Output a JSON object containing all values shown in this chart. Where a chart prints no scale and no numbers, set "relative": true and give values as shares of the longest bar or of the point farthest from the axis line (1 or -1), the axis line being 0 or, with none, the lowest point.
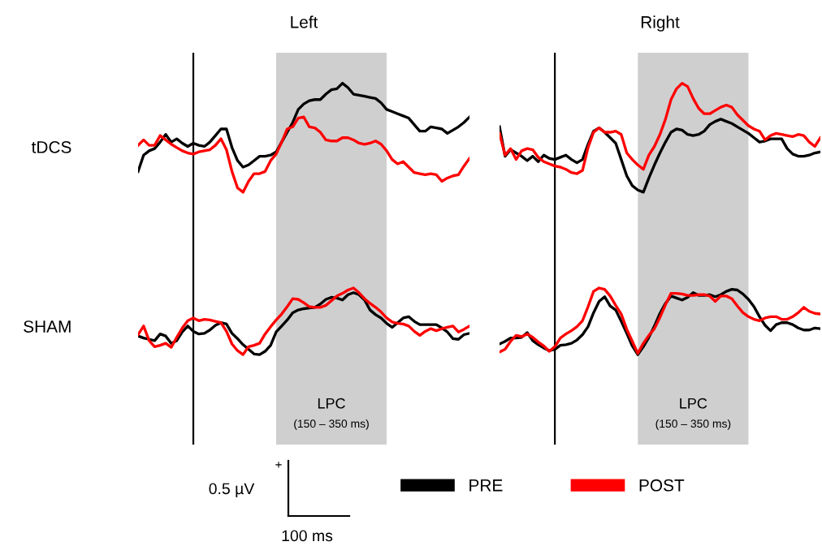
{
  "chart_data": [
    {
      "type": "line",
      "title": "Left",
      "ylabel": "tDCS",
      "relative": true,
      "tick_labels": false,
      "legend": "bottom",
      "line_style": "solid",
      "categories": [
        null,
        null,
        null,
        null,
        null,
        null,
        null,
        null,
        null,
        null,
        null,
        null,
        null,
        null,
        null,
        null,
        null,
        null,
        null,
        null,
        null,
        null,
        null,
        null,
        null,
        null,
        null,
        null,
        null,
        null,
        null,
        null,
        null,
        null,
        null,
        null,
        null,
        null,
        null,
        null,
        null,
        null,
        null,
        null,
        null,
        null,
        null,
        null,
        null,
        null,
        null,
        null,
        null,
        null,
        null,
        null,
        null,
        null,
        null,
        null,
        null
      ],
      "series": [
        {
          "name": "PRE",
          "color": "#000000",
          "values": [
            0.19,
            0.34,
            0.38,
            0.4,
            0.46,
            0.53,
            0.46,
            0.49,
            0.45,
            0.42,
            0.45,
            0.43,
            0.42,
            0.46,
            0.52,
            0.58,
            0.58,
            0.41,
            0.29,
            0.23,
            0.25,
            0.29,
            0.33,
            0.33,
            0.34,
            0.37,
            0.46,
            0.55,
            0.64,
            0.76,
            0.81,
            0.84,
            0.85,
            0.85,
            0.9,
            0.94,
            0.95,
            1,
            0.96,
            0.9,
            0.89,
            0.88,
            0.87,
            0.86,
            0.82,
            0.76,
            0.74,
            0.72,
            0.7,
            0.68,
            0.62,
            0.56,
            0.56,
            0.6,
            0.59,
            0.58,
            0.54,
            0.57,
            0.6,
            0.64,
            0.69
          ]
        },
        {
          "name": "POST",
          "color": "#ff0000",
          "values": [
            0.43,
            0.48,
            0.43,
            0.43,
            0.52,
            0.48,
            0.44,
            0.41,
            0.38,
            0.36,
            0.35,
            0.37,
            0.38,
            0.39,
            0.43,
            0.49,
            0.39,
            0.19,
            0.04,
            0,
            0.1,
            0.17,
            0.17,
            0.19,
            0.29,
            0.35,
            0.46,
            0.58,
            0.6,
            0.68,
            0.69,
            0.6,
            0.59,
            0.55,
            0.48,
            0.47,
            0.47,
            0.5,
            0.5,
            0.48,
            0.45,
            0.44,
            0.45,
            0.47,
            0.44,
            0.38,
            0.3,
            0.26,
            0.28,
            0.23,
            0.18,
            0.17,
            0.16,
            0.17,
            0.16,
            0.1,
            0.13,
            0.15,
            0.16,
            0.24,
            0.31
          ]
        }
      ]
    },
    {
      "type": "line",
      "title": "Right",
      "relative": true,
      "tick_labels": false,
      "line_style": "solid",
      "categories": [
        null,
        null,
        null,
        null,
        null,
        null,
        null,
        null,
        null,
        null,
        null,
        null,
        null,
        null,
        null,
        null,
        null,
        null,
        null,
        null,
        null,
        null,
        null,
        null,
        null,
        null,
        null,
        null,
        null,
        null,
        null,
        null,
        null,
        null,
        null,
        null,
        null,
        null,
        null,
        null,
        null,
        null,
        null,
        null,
        null,
        null,
        null,
        null,
        null,
        null,
        null,
        null,
        null,
        null,
        null,
        null,
        null,
        null,
        null
      ],
      "series": [
        {
          "color": "#000000",
          "values": [
            0.6,
            0.33,
            0.39,
            0.36,
            0.33,
            0.29,
            0.33,
            0.28,
            0.34,
            0.31,
            0.3,
            0.32,
            0.34,
            0.3,
            0.27,
            0.3,
            0.44,
            0.56,
            0.59,
            0.55,
            0.5,
            0.45,
            0.3,
            0.15,
            0.06,
            0.02,
            0,
            0.13,
            0.25,
            0.36,
            0.46,
            0.55,
            0.58,
            0.57,
            0.53,
            0.52,
            0.53,
            0.56,
            0.62,
            0.65,
            0.67,
            0.65,
            0.63,
            0.6,
            0.57,
            0.54,
            0.5,
            0.46,
            0.47,
            0.49,
            0.49,
            0.49,
            0.4,
            0.35,
            0.33,
            0.33,
            0.34,
            0.36,
            0.37
          ]
        },
        {
          "color": "#ff0000",
          "values": [
            0.54,
            0.34,
            0.4,
            0.3,
            0.38,
            0.4,
            0.39,
            0.32,
            0.28,
            0.26,
            0.24,
            0.23,
            0.21,
            0.18,
            0.17,
            0.2,
            0.41,
            0.55,
            0.59,
            0.55,
            0.55,
            0.56,
            0.53,
            0.36,
            0.3,
            0.25,
            0.21,
            0.34,
            0.42,
            0.53,
            0.67,
            0.85,
            0.95,
            1,
            0.97,
            0.86,
            0.77,
            0.72,
            0.72,
            0.75,
            0.78,
            0.8,
            0.78,
            0.71,
            0.66,
            0.61,
            0.58,
            0.56,
            0.48,
            0.52,
            0.54,
            0.53,
            0.52,
            0.51,
            0.53,
            0.52,
            0.46,
            0.42,
            0.5
          ]
        }
      ]
    },
    {
      "type": "line",
      "ylabel": "SHAM",
      "relative": true,
      "tick_labels": false,
      "line_style": "solid",
      "categories": [
        null,
        null,
        null,
        null,
        null,
        null,
        null,
        null,
        null,
        null,
        null,
        null,
        null,
        null,
        null,
        null,
        null,
        null,
        null,
        null,
        null,
        null,
        null,
        null,
        null,
        null,
        null,
        null,
        null,
        null,
        null,
        null,
        null,
        null,
        null,
        null,
        null,
        null,
        null,
        null,
        null,
        null,
        null,
        null,
        null,
        null,
        null,
        null,
        null,
        null,
        null,
        null,
        null,
        null,
        null,
        null,
        null,
        null,
        null,
        null,
        null
      ],
      "annotations": [
        "LPC\n(150 – 350 ms)",
        "+",
        "0.5 µV",
        "100 ms"
      ],
      "series": [
        {
          "color": "#000000",
          "values": [
            0.28,
            0.25,
            0.23,
            0.21,
            0.31,
            0.28,
            0.17,
            0.21,
            0.34,
            0.43,
            0.35,
            0.31,
            0.32,
            0.37,
            0.44,
            0.48,
            0.46,
            0.32,
            0.24,
            0.15,
            0.08,
            0.01,
            0,
            0.05,
            0.14,
            0.34,
            0.43,
            0.52,
            0.63,
            0.67,
            0.69,
            0.7,
            0.71,
            0.76,
            0.83,
            0.86,
            0.85,
            0.82,
            0.9,
            0.93,
            0.9,
            0.82,
            0.67,
            0.6,
            0.55,
            0.47,
            0.41,
            0.48,
            0.55,
            0.57,
            0.5,
            0.45,
            0.45,
            0.45,
            0.45,
            0.4,
            0.34,
            0.24,
            0.23,
            0.3,
            0.32
          ]
        },
        {
          "color": "#ff0000",
          "values": [
            0.3,
            0.43,
            0.21,
            0.12,
            0.14,
            0.17,
            0.11,
            0.26,
            0.4,
            0.51,
            0.55,
            0.51,
            0.53,
            0.52,
            0.5,
            0.48,
            0.35,
            0.16,
            0.06,
            0,
            0.12,
            0.14,
            0.17,
            0.31,
            0.42,
            0.52,
            0.61,
            0.72,
            0.84,
            0.83,
            0.78,
            0.72,
            0.71,
            0.71,
            0.74,
            0.81,
            0.88,
            0.92,
            0.97,
            1,
            0.93,
            0.84,
            0.77,
            0.71,
            0.64,
            0.55,
            0.49,
            0.47,
            0.46,
            0.43,
            0.35,
            0.29,
            0.35,
            0.39,
            0.36,
            0.39,
            0.41,
            0.43,
            0.34,
            0.38,
            0.43
          ]
        }
      ]
    },
    {
      "type": "line",
      "relative": true,
      "tick_labels": false,
      "line_style": "solid",
      "categories": [
        null,
        null,
        null,
        null,
        null,
        null,
        null,
        null,
        null,
        null,
        null,
        null,
        null,
        null,
        null,
        null,
        null,
        null,
        null,
        null,
        null,
        null,
        null,
        null,
        null,
        null,
        null,
        null,
        null,
        null,
        null,
        null,
        null,
        null,
        null,
        null,
        null,
        null,
        null,
        null,
        null,
        null,
        null,
        null,
        null,
        null,
        null,
        null,
        null,
        null,
        null,
        null,
        null,
        null,
        null,
        null,
        null,
        null,
        null
      ],
      "annotations": [
        "LPC\n(150 – 350 ms)"
      ],
      "series": [
        {
          "color": "#000000",
          "values": [
            0.16,
            0.2,
            0.25,
            0.25,
            0.26,
            0.33,
            0.21,
            0.15,
            0.1,
            0.06,
            0.08,
            0.14,
            0.15,
            0.17,
            0.22,
            0.3,
            0.42,
            0.63,
            0.8,
            0.87,
            0.73,
            0.67,
            0.5,
            0.32,
            0.13,
            0,
            0.12,
            0.26,
            0.43,
            0.62,
            0.77,
            0.88,
            0.85,
            0.82,
            0.86,
            0.93,
            0.89,
            0.89,
            0.9,
            0.87,
            0.9,
            0.95,
            0.98,
            0.97,
            0.91,
            0.83,
            0.72,
            0.57,
            0.44,
            0.36,
            0.45,
            0.48,
            0.48,
            0.45,
            0.4,
            0.37,
            0.37,
            0.4,
            0.39
          ]
        },
        {
          "color": "#ff0000",
          "values": [
            0.04,
            0.08,
            0.2,
            0.29,
            0.27,
            0.31,
            0.26,
            0.19,
            0.13,
            0.05,
            0.12,
            0.25,
            0.31,
            0.36,
            0.42,
            0.51,
            0.72,
            0.95,
            1,
            0.98,
            0.88,
            0.74,
            0.61,
            0.38,
            0.2,
            0.02,
            0.17,
            0.29,
            0.39,
            0.56,
            0.75,
            0.92,
            0.92,
            0.91,
            0.89,
            0.89,
            0.9,
            0.9,
            0.88,
            0.8,
            0.88,
            0.88,
            0.84,
            0.73,
            0.63,
            0.57,
            0.53,
            0.51,
            0.55,
            0.57,
            0.57,
            0.53,
            0.53,
            0.57,
            0.63,
            0.71,
            0.65,
            0.62,
            0.61
          ]
        }
      ]
    }
  ]
}
